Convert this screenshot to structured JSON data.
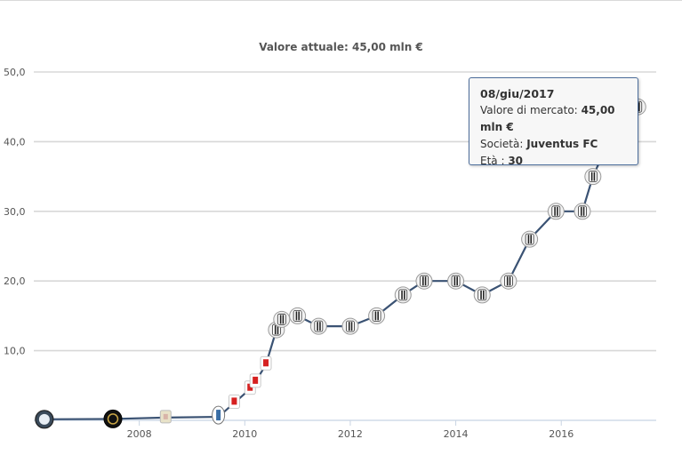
{
  "title": "Valore attuale: 45,00 mln €",
  "chart_data": {
    "type": "line",
    "title": "Valore attuale: 45,00 mln €",
    "xlabel": "",
    "ylabel": "",
    "xlim": [
      2006.0,
      2017.8
    ],
    "ylim": [
      0,
      50
    ],
    "yticks": [
      "10,0",
      "20,0",
      "30,0",
      "40,0",
      "50,0"
    ],
    "ytick_values": [
      10,
      20,
      30,
      40,
      50
    ],
    "xticks": [
      "2008",
      "2010",
      "2012",
      "2014",
      "2016"
    ],
    "xtick_values": [
      2008,
      2010,
      2012,
      2014,
      2016
    ],
    "grid": true,
    "legend": "none",
    "line_color": "#3a5273",
    "series": [
      {
        "x": [
          2006.2,
          2007.5,
          2008.5,
          2009.5,
          2009.8,
          2010.1,
          2010.2,
          2010.4,
          2010.6,
          2010.7,
          2011.0,
          2011.4,
          2012.0,
          2012.5,
          2013.0,
          2013.4,
          2014.0,
          2014.5,
          2015.0,
          2015.4,
          2015.9,
          2016.4,
          2016.6,
          2016.9,
          2017.1,
          2017.45
        ],
        "y": [
          0.15,
          0.2,
          0.4,
          0.5,
          2.5,
          4.5,
          5.5,
          8.0,
          13.0,
          14.5,
          15.0,
          13.5,
          13.5,
          15.0,
          18.0,
          20.0,
          20.0,
          18.0,
          20.0,
          26.0,
          30.0,
          30.0,
          35.0,
          40.0,
          40.0,
          45.0
        ],
        "club": [
          "",
          "",
          "",
          "",
          "",
          "",
          "",
          "",
          "Juventus FC",
          "Juventus FC",
          "Juventus FC",
          "Juventus FC",
          "Juventus FC",
          "Juventus FC",
          "Juventus FC",
          "Juventus FC",
          "Juventus FC",
          "Juventus FC",
          "Juventus FC",
          "Juventus FC",
          "Juventus FC",
          "Juventus FC",
          "Juventus FC",
          "Juventus FC",
          "Juventus FC",
          "Juventus FC"
        ]
      }
    ]
  },
  "tooltip": {
    "date": "08/giu/2017",
    "value_label": "Valore di mercato:",
    "value": "45,00 mln €",
    "club_label": "Società:",
    "club": "Juventus FC",
    "age_label": "Età :",
    "age": "30"
  },
  "colors": {
    "juventus_marker": "#e0e0e0",
    "bologna_marker": "#d62020",
    "inter_marker": "#1f1f1f",
    "atalanta_marker": "#3a6ea5",
    "mantova_marker": "#e8e2c8"
  }
}
